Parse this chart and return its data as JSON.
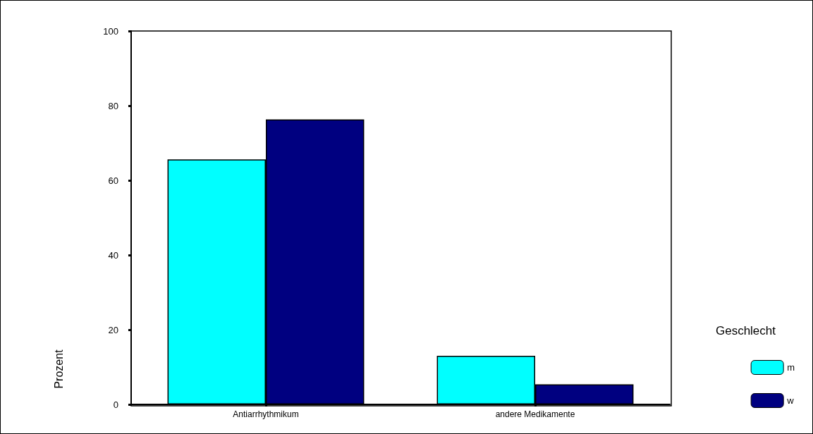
{
  "chart_data": {
    "type": "bar",
    "ylabel": "Prozent",
    "legend_title": "Geschlecht",
    "categories": [
      "Antiarrhythmikum",
      "andere Medikamente"
    ],
    "series": [
      {
        "name": "m",
        "color": "#00ffff",
        "values": [
          65.6,
          13.0
        ]
      },
      {
        "name": "w",
        "color": "#000080",
        "values": [
          76.3,
          5.4
        ]
      }
    ],
    "ylim": [
      0,
      100
    ],
    "yticks": [
      0,
      20,
      40,
      60,
      80,
      100
    ],
    "grid": false,
    "legend": "right"
  }
}
